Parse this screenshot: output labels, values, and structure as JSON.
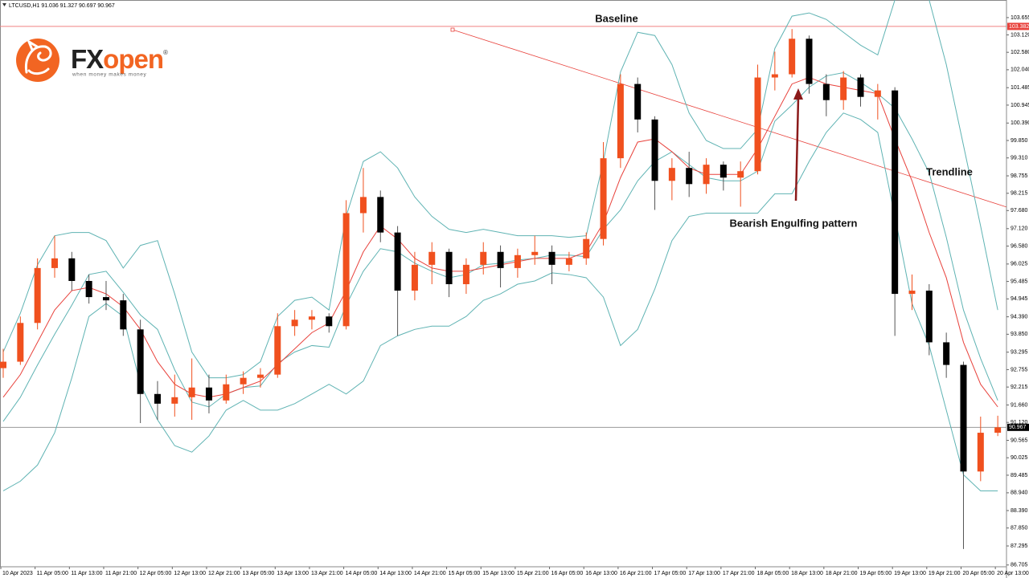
{
  "chart_data": {
    "type": "candlestick",
    "header": "LTCUSD,H1  91.036 91.327 90.697 90.967",
    "logo": {
      "prefix": "FX",
      "brand": "open",
      "registered": "®",
      "tagline": "when money makes money"
    },
    "up_color": "#f0501e",
    "down_color": "#000000",
    "open": [
      92.8,
      93.0,
      94.2,
      95.9,
      96.2,
      95.5,
      95.0,
      94.9,
      94.0,
      92.0,
      91.7,
      91.9,
      92.2,
      91.8,
      92.3,
      92.5,
      92.6,
      94.1,
      94.3,
      94.4,
      94.1,
      97.6,
      98.1,
      97.0,
      95.2,
      96.0,
      96.4,
      95.4,
      96.0,
      96.4,
      95.9,
      96.3,
      96.4,
      96.0,
      96.2,
      96.8,
      99.3,
      101.6,
      100.5,
      98.6,
      99.0,
      98.5,
      99.1,
      98.7,
      98.9,
      101.8,
      101.9,
      103.0,
      101.6,
      101.1,
      101.8,
      101.2,
      101.4,
      95.1,
      95.2,
      93.6,
      92.9,
      89.6,
      90.8
    ],
    "high": [
      93.4,
      94.4,
      96.2,
      96.9,
      96.4,
      95.7,
      95.5,
      95.1,
      94.3,
      92.4,
      92.6,
      93.1,
      92.6,
      92.6,
      92.7,
      92.8,
      94.5,
      94.6,
      94.6,
      94.5,
      98.0,
      99.0,
      98.3,
      97.2,
      96.4,
      96.7,
      96.5,
      96.2,
      96.7,
      96.6,
      96.5,
      96.9,
      96.6,
      96.4,
      97.0,
      99.8,
      101.9,
      101.8,
      100.6,
      99.3,
      99.5,
      99.3,
      99.2,
      99.2,
      102.2,
      102.6,
      103.3,
      103.1,
      101.9,
      102.0,
      101.9,
      101.6,
      101.5,
      95.7,
      95.4,
      93.9,
      93.0,
      91.3,
      91.327
    ],
    "low": [
      92.5,
      92.9,
      94.0,
      95.6,
      95.2,
      94.8,
      94.6,
      93.8,
      91.1,
      91.2,
      91.3,
      91.2,
      91.4,
      91.7,
      92.0,
      92.2,
      92.5,
      93.8,
      94.0,
      93.9,
      94.0,
      97.0,
      96.7,
      93.8,
      94.9,
      95.4,
      95.0,
      95.1,
      95.7,
      95.3,
      95.6,
      96.0,
      95.4,
      95.8,
      96.0,
      96.6,
      99.0,
      100.1,
      97.7,
      98.0,
      98.1,
      98.2,
      98.3,
      97.8,
      98.8,
      101.4,
      101.8,
      101.3,
      100.6,
      100.8,
      100.9,
      100.5,
      93.8,
      94.6,
      93.2,
      92.5,
      87.2,
      89.3,
      90.697
    ],
    "close": [
      93.0,
      94.2,
      95.9,
      96.2,
      95.5,
      95.0,
      94.9,
      94.0,
      92.0,
      91.7,
      91.9,
      92.2,
      91.8,
      92.3,
      92.5,
      92.6,
      94.1,
      94.3,
      94.4,
      94.1,
      97.6,
      98.1,
      97.0,
      95.2,
      96.0,
      96.4,
      95.4,
      96.0,
      96.4,
      95.9,
      96.3,
      96.4,
      96.0,
      96.2,
      96.8,
      99.3,
      101.6,
      100.5,
      98.6,
      99.0,
      98.5,
      99.1,
      98.7,
      98.9,
      101.8,
      101.9,
      103.0,
      101.6,
      101.1,
      101.8,
      101.2,
      101.4,
      95.1,
      95.2,
      93.6,
      92.9,
      89.6,
      90.8,
      90.967
    ],
    "overlays": [
      {
        "color": "#5fb3b3",
        "values": [
          93.3,
          94.5,
          96.0,
          96.9,
          97.0,
          97.0,
          96.75,
          95.9,
          96.6,
          96.75,
          95.1,
          93.3,
          92.5,
          92.5,
          92.6,
          93.0,
          94.4,
          94.9,
          95.0,
          94.6,
          97.5,
          99.2,
          99.5,
          99.0,
          98.1,
          97.5,
          97.1,
          97.0,
          97.1,
          97.0,
          96.9,
          96.9,
          96.9,
          96.85,
          96.9,
          99.2,
          101.97,
          103.2,
          103.1,
          102.2,
          100.7,
          99.85,
          99.6,
          99.6,
          100.2,
          102.7,
          103.7,
          103.8,
          103.6,
          103.2,
          102.8,
          102.5,
          104.2,
          105.0,
          104.2,
          102.2,
          99.7,
          97.2,
          94.6
        ]
      },
      {
        "color": "#5fb3b3",
        "values": [
          91.15,
          91.9,
          92.9,
          93.85,
          94.75,
          95.7,
          95.8,
          95.15,
          94.45,
          94.0,
          92.75,
          91.75,
          91.6,
          92.0,
          92.2,
          92.25,
          92.95,
          93.3,
          93.5,
          93.45,
          94.75,
          95.8,
          96.5,
          96.4,
          96.05,
          95.8,
          95.6,
          95.7,
          96.0,
          96.05,
          96.15,
          96.2,
          96.3,
          96.3,
          96.25,
          97.1,
          97.7,
          98.6,
          99.2,
          99.5,
          99.1,
          98.7,
          98.6,
          98.6,
          98.9,
          100.45,
          100.95,
          101.5,
          101.85,
          101.95,
          101.65,
          101.3,
          100.85,
          99.9,
          98.85,
          96.85,
          94.6,
          93.1,
          91.8
        ]
      },
      {
        "color": "#5fb3b3",
        "values": [
          89.0,
          89.3,
          89.8,
          90.8,
          92.5,
          94.4,
          94.8,
          94.4,
          92.3,
          91.2,
          90.4,
          90.2,
          90.7,
          91.5,
          91.8,
          91.5,
          91.5,
          91.7,
          92.0,
          92.3,
          92.0,
          92.4,
          93.5,
          93.8,
          94.0,
          94.1,
          94.1,
          94.4,
          94.9,
          95.1,
          95.4,
          95.5,
          95.75,
          95.7,
          95.6,
          95.0,
          93.5,
          94.0,
          95.25,
          96.75,
          97.5,
          97.6,
          97.6,
          97.6,
          97.6,
          98.2,
          98.2,
          99.2,
          100.1,
          100.7,
          100.5,
          100.1,
          97.5,
          94.8,
          93.5,
          91.5,
          89.5,
          89.0,
          89.0
        ]
      },
      {
        "color": "#e8423c",
        "values": [
          91.9,
          92.6,
          93.6,
          94.6,
          95.2,
          95.3,
          95.1,
          94.7,
          94.0,
          93.0,
          92.3,
          92.0,
          91.9,
          92.0,
          92.2,
          92.4,
          92.9,
          93.4,
          93.9,
          94.2,
          95.2,
          96.4,
          97.2,
          96.8,
          96.2,
          95.9,
          95.8,
          95.8,
          95.9,
          96.0,
          96.1,
          96.2,
          96.2,
          96.2,
          96.4,
          97.3,
          98.7,
          99.8,
          99.9,
          99.5,
          99.0,
          98.8,
          98.8,
          98.8,
          99.6,
          100.6,
          101.6,
          101.8,
          101.6,
          101.5,
          101.4,
          101.3,
          99.9,
          98.6,
          97.0,
          95.6,
          93.6,
          92.3,
          91.6
        ]
      }
    ],
    "baseline": {
      "value": 103.382,
      "color": "#f08080",
      "label": "Baseline"
    },
    "trendline": {
      "values": [
        103.28,
        97.79
      ],
      "color": "#e8423c",
      "label": "Trendline"
    },
    "pattern_label": "Bearish Engulfing pattern",
    "current_price": 90.967,
    "ylim": [
      86.65,
      104.2
    ],
    "yticks": [
      103.655,
      {
        "value": 103.12,
        "label": "103.120"
      },
      {
        "value": 102.58,
        "label": "102.580"
      },
      {
        "value": 102.04,
        "label": "102.040"
      },
      101.485,
      100.945,
      {
        "value": 100.39,
        "label": "100.390"
      },
      {
        "value": 99.85,
        "label": "99.850"
      },
      {
        "value": 99.31,
        "label": "99.310"
      },
      98.755,
      98.215,
      {
        "value": 97.68,
        "label": "97.680"
      },
      {
        "value": 97.12,
        "label": "97.120"
      },
      {
        "value": 96.58,
        "label": "96.580"
      },
      96.025,
      95.485,
      94.945,
      {
        "value": 94.39,
        "label": "94.390"
      },
      {
        "value": 93.85,
        "label": "93.850"
      },
      93.295,
      92.755,
      92.215,
      {
        "value": 91.66,
        "label": "91.660"
      },
      {
        "value": 91.12,
        "label": "91.120"
      },
      90.565,
      90.025,
      89.485,
      {
        "value": 88.94,
        "label": "88.940"
      },
      {
        "value": 88.39,
        "label": "88.390"
      },
      {
        "value": 87.85,
        "label": "87.850"
      },
      87.295,
      86.705
    ],
    "x_tick_labels": [
      "10 Apr 2023",
      "11 Apr 05:00",
      "11 Apr 13:00",
      "11 Apr 21:00",
      "12 Apr 05:00",
      "12 Apr 13:00",
      "12 Apr 21:00",
      "13 Apr 05:00",
      "13 Apr 13:00",
      "13 Apr 21:00",
      "14 Apr 05:00",
      "14 Apr 13:00",
      "14 Apr 21:00",
      "15 Apr 05:00",
      "15 Apr 13:00",
      "15 Apr 21:00",
      "16 Apr 05:00",
      "16 Apr 13:00",
      "16 Apr 21:00",
      "17 Apr 05:00",
      "17 Apr 13:00",
      "17 Apr 21:00",
      "18 Apr 05:00",
      "18 Apr 13:00",
      "18 Apr 21:00",
      "19 Apr 05:00",
      "19 Apr 13:00",
      "19 Apr 21:00",
      "20 Apr 05:00",
      "20 Apr 13:00"
    ]
  }
}
